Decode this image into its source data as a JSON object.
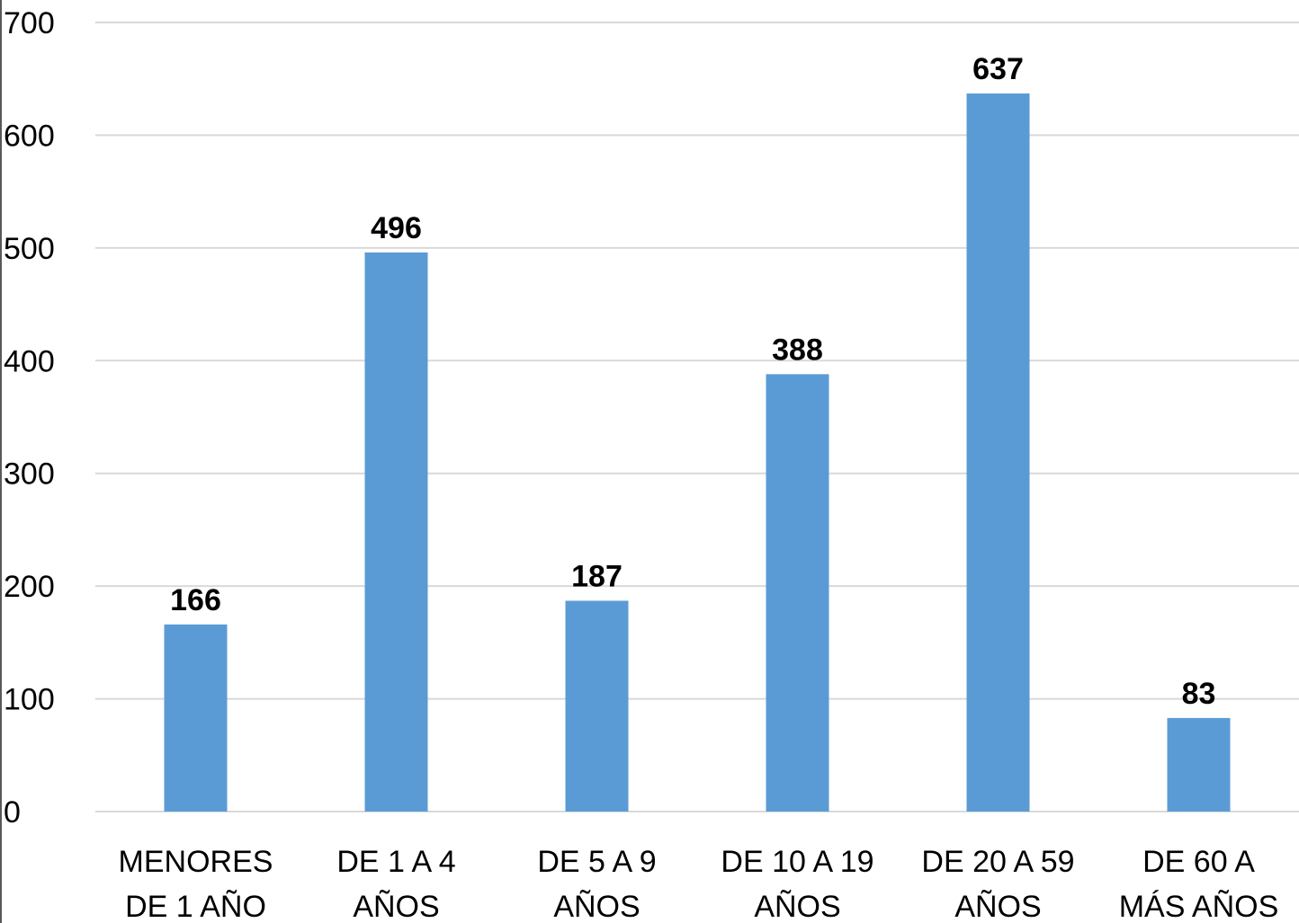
{
  "chart_data": {
    "type": "bar",
    "title": "",
    "xlabel": "",
    "ylabel": "",
    "categories": [
      [
        "MENORES",
        "DE 1 AÑO"
      ],
      [
        "DE 1 A 4",
        "AÑOS"
      ],
      [
        "DE 5 A 9",
        "AÑOS"
      ],
      [
        "DE 10 A 19",
        "AÑOS"
      ],
      [
        "DE 20 A 59",
        "AÑOS"
      ],
      [
        "DE 60 A",
        "MÁS AÑOS"
      ]
    ],
    "values": [
      166,
      496,
      187,
      388,
      637,
      83
    ],
    "data_labels": [
      "166",
      "496",
      "187",
      "388",
      "637",
      "83"
    ],
    "ylim": [
      0,
      700
    ],
    "yticks": [
      "0",
      "100",
      "200",
      "300",
      "400",
      "500",
      "600",
      "700"
    ],
    "grid": true,
    "legend": "none",
    "colors": {
      "bar": "#5B9BD5",
      "grid": "#D9D9D9",
      "axis_line": "#595959"
    }
  }
}
